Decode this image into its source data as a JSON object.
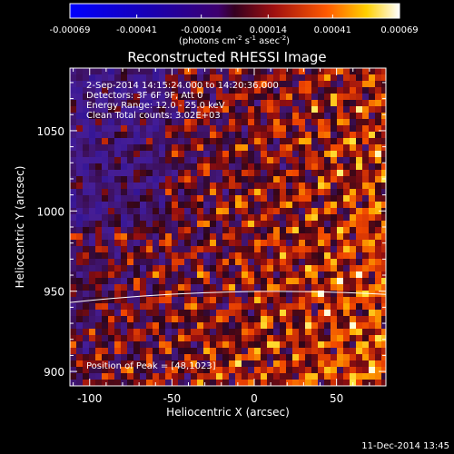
{
  "chart_data": {
    "type": "heatmap",
    "title": "Reconstructed RHESSI Image",
    "xlabel": "Heliocentric X (arcsec)",
    "ylabel": "Heliocentric Y (arcsec)",
    "xlim": [
      -112,
      80
    ],
    "ylim": [
      891,
      1089
    ],
    "x_ticks": [
      "-100",
      "-50",
      "0",
      "50"
    ],
    "x_tick_values": [
      -100,
      -50,
      0,
      50
    ],
    "y_ticks": [
      "900",
      "950",
      "1000",
      "1050"
    ],
    "y_tick_values": [
      900,
      950,
      1000,
      1050
    ],
    "colorbar": {
      "min": -0.00069,
      "max": 0.00069,
      "tick_labels": [
        "-0.00069",
        "-0.00041",
        "-0.00014",
        "0.00014",
        "0.00041",
        "0.00069"
      ],
      "tick_values": [
        -0.00069,
        -0.00041,
        -0.00014,
        0.00014,
        0.00041,
        0.00069
      ],
      "units_pre": "(photons cm",
      "units_exp1": "-2",
      "units_mid": " s",
      "units_exp2": "-1",
      "units_mid2": " asec",
      "units_exp3": "-2",
      "units_post": ")"
    },
    "info_lines": [
      "2-Sep-2014 14:15:24.000 to 14:20:36.000",
      "Detectors: 3F 6F 9F, Att 0",
      "Energy Range: 12.0 - 25.0 keV",
      "Clean     Total counts: 3.02E+03"
    ],
    "peak_label": "Position of Peak = [48,1023]",
    "peak": [
      48,
      1023
    ],
    "limb_y_at_left": 943,
    "limb_y_at_center": 949,
    "limb_y_at_right": 948
  },
  "timestamp": "11-Dec-2014 13:45"
}
